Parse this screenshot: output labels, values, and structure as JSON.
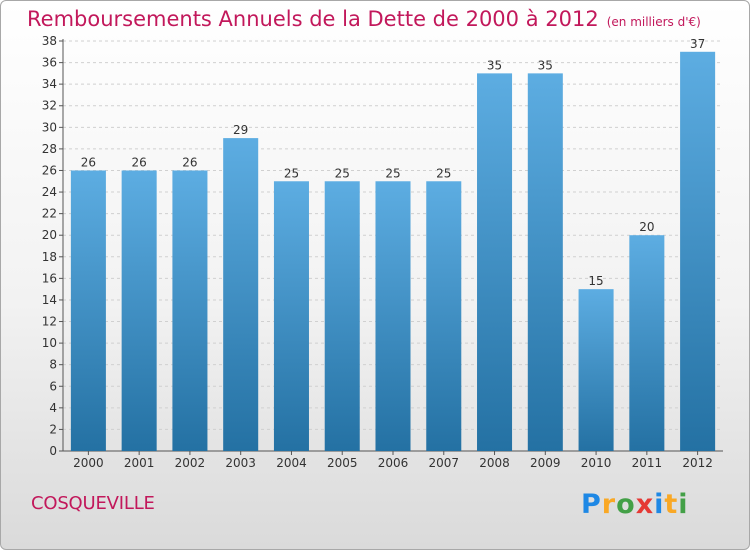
{
  "header": {
    "title": "Remboursements Annuels de la Dette de 2000 à 2012",
    "subtitle": "(en milliers d'€)"
  },
  "footer": {
    "commune": "COSQUEVILLE",
    "logo_text": "Proxiti",
    "logo_letters": [
      "P",
      "r",
      "o",
      "x",
      "i",
      "t",
      "i"
    ]
  },
  "colors": {
    "title": "#c2185b",
    "bar_top": "#5dade2",
    "bar_bottom": "#2471a3",
    "axis": "#555555"
  },
  "chart_data": {
    "type": "bar",
    "categories": [
      "2000",
      "2001",
      "2002",
      "2003",
      "2004",
      "2005",
      "2006",
      "2007",
      "2008",
      "2009",
      "2010",
      "2011",
      "2012"
    ],
    "values": [
      26,
      26,
      26,
      29,
      25,
      25,
      25,
      25,
      35,
      35,
      15,
      20,
      37
    ],
    "title": "Remboursements Annuels de la Dette de 2000 à 2012",
    "ylim": [
      0,
      38
    ],
    "yticks": [
      0,
      2,
      4,
      6,
      8,
      10,
      12,
      14,
      16,
      18,
      20,
      22,
      24,
      26,
      28,
      30,
      32,
      34,
      36,
      38
    ],
    "grid": true,
    "data_labels": true
  }
}
